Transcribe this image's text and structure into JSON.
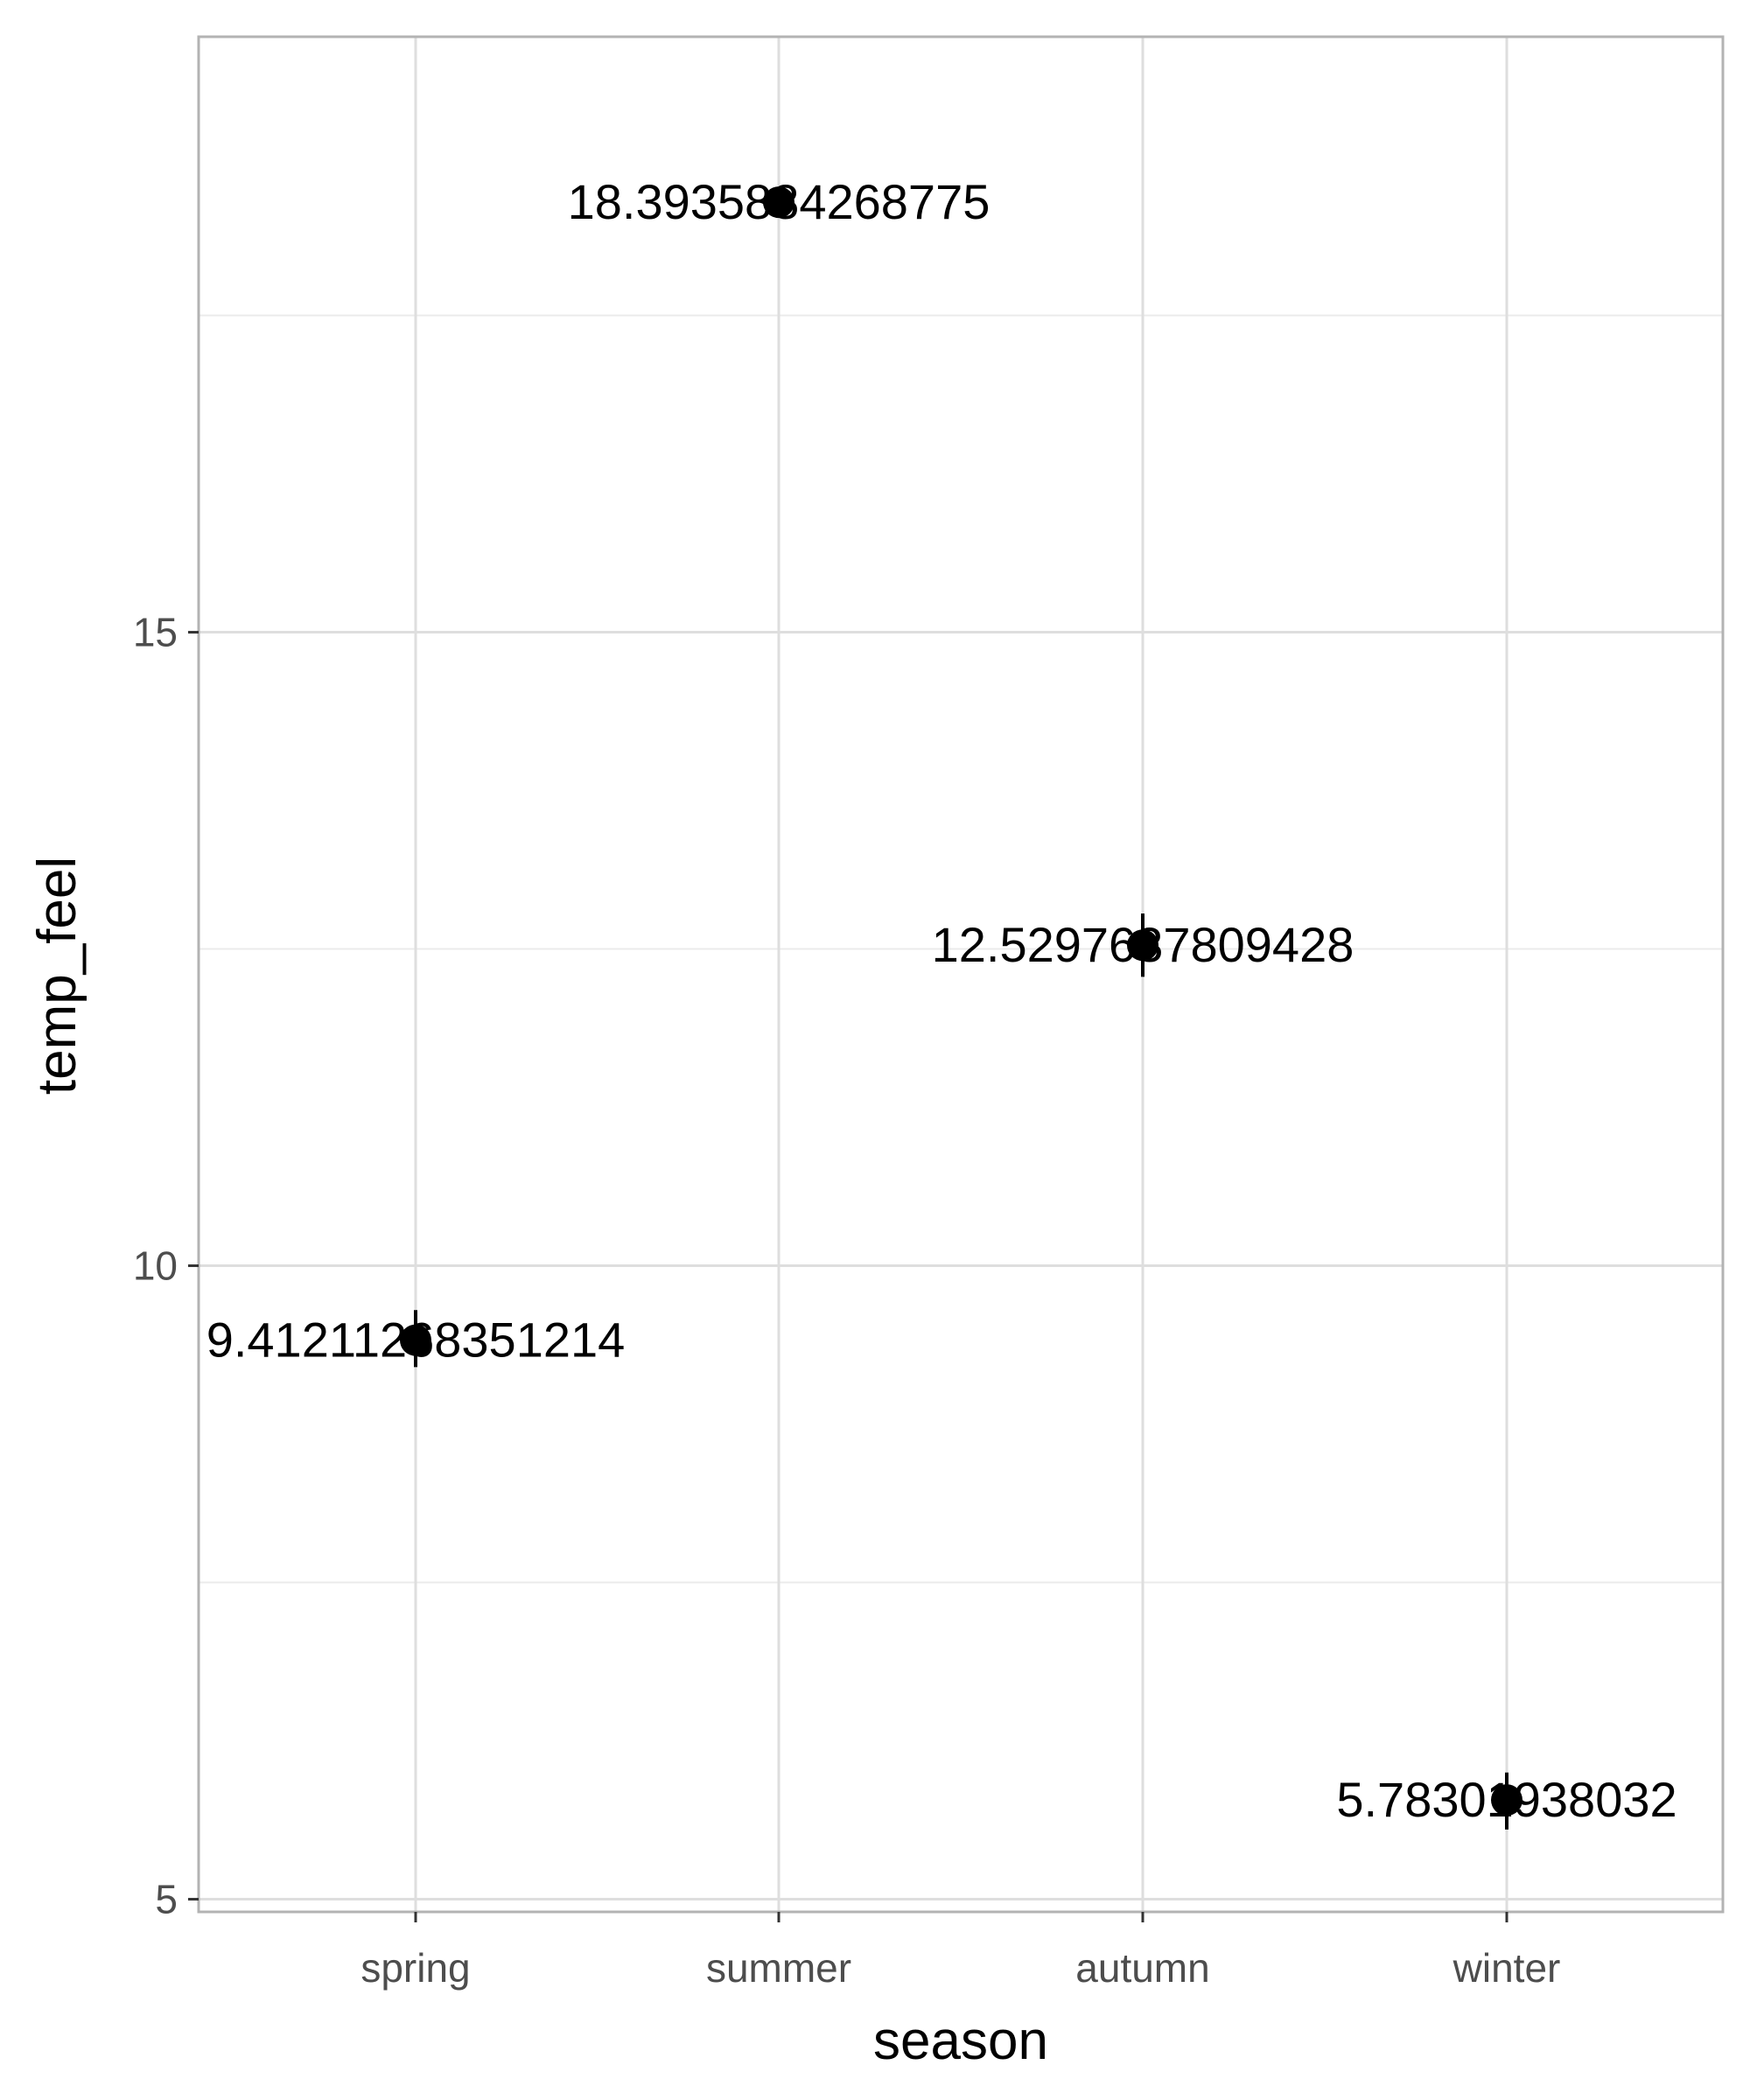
{
  "chart_data": {
    "type": "scatter",
    "title": "",
    "xlabel": "season",
    "ylabel": "temp_feel",
    "categories": [
      "spring",
      "summer",
      "autumn",
      "winter"
    ],
    "values": [
      9.41211268351214,
      18.3935884268775,
      12.5297637809428,
      5.78301938032
    ],
    "data_labels": [
      "9.41211268351214",
      "18.3935884268775",
      "12.5297637809428",
      "5.78301938032"
    ],
    "error_bars": [
      {
        "low": 9.2,
        "high": 9.65
      },
      {
        "low": 18.28,
        "high": 18.5
      },
      {
        "low": 12.28,
        "high": 12.78
      },
      {
        "low": 5.55,
        "high": 6.0
      }
    ],
    "yticks": [
      5,
      10,
      15
    ],
    "ylim": [
      4.9,
      19.7
    ],
    "grid": true,
    "legend": "none"
  }
}
